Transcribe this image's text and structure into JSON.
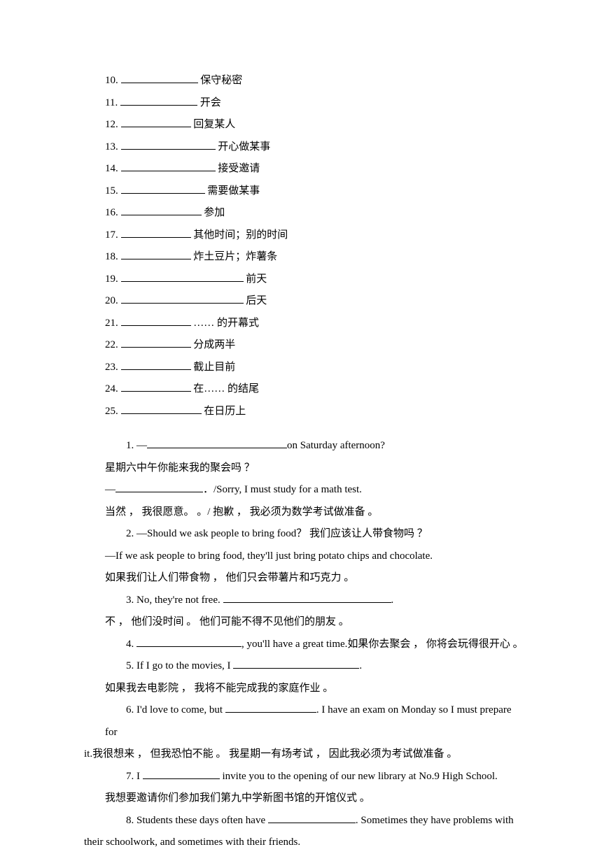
{
  "vocab": [
    {
      "num": "10.",
      "blank_width": 110,
      "label": "保守秘密"
    },
    {
      "num": "11.",
      "blank_width": 110,
      "label": "开会"
    },
    {
      "num": "12.",
      "blank_width": 100,
      "label": "回复某人"
    },
    {
      "num": "13.",
      "blank_width": 135,
      "label": "开心做某事"
    },
    {
      "num": "14.",
      "blank_width": 135,
      "label": "接受邀请"
    },
    {
      "num": "15.",
      "blank_width": 120,
      "label": "需要做某事"
    },
    {
      "num": "16.",
      "blank_width": 115,
      "label": "参加"
    },
    {
      "num": "17.",
      "blank_width": 100,
      "label": "其他时间；别的时间"
    },
    {
      "num": "18.",
      "blank_width": 100,
      "label": "炸土豆片；炸薯条"
    },
    {
      "num": "19.",
      "blank_width": 175,
      "label": "前天"
    },
    {
      "num": "20.",
      "blank_width": 175,
      "label": "后天"
    },
    {
      "num": "21.",
      "blank_width": 100,
      "label": "…… 的开幕式"
    },
    {
      "num": "22.",
      "blank_width": 100,
      "label": "分成两半"
    },
    {
      "num": "23.",
      "blank_width": 100,
      "label": "截止目前"
    },
    {
      "num": "24.",
      "blank_width": 100,
      "label": "在…… 的结尾"
    },
    {
      "num": "25.",
      "blank_width": 115,
      "label": "在日历上"
    }
  ],
  "s1": {
    "num": "1. —",
    "blank1_width": 200,
    "tail1": "on Saturday afternoon?",
    "cn1": "星期六中午你能来我的聚会吗 ？",
    "dash": "—",
    "blank2_width": 125,
    "tail2": "．/Sorry, I must study for a math test.",
    "cn2": "当然 ， 我很愿意。 。/ 抱歉 ， 我必须为数学考试做准备 。"
  },
  "s2": {
    "line1": "2. —Should we ask people to bring food？ 我们应该让人带食物吗 ？",
    "line2": "—If we ask people to bring food, they'll just bring potato chips and chocolate.",
    "line3": "如果我们让人们带食物 ， 他们只会带薯片和巧克力 。"
  },
  "s3": {
    "pre": "3. No, they're not free. ",
    "blank_width": 240,
    "tail": ".",
    "cn": "不 ， 他们没时间 。 他们可能不得不见他们的朋友 。"
  },
  "s4": {
    "num": "4. ",
    "blank_width": 150,
    "tail": ", you'll have a great time.如果你去聚会 ， 你将会玩得很开心 。"
  },
  "s5": {
    "pre": "5. If I go to the movies, I ",
    "blank_width": 180,
    "tail": ".",
    "cn": "如果我去电影院 ， 我将不能完成我的家庭作业 。"
  },
  "s6": {
    "pre": "6. I'd love to come, but ",
    "blank_width": 130,
    "tail": ". I have an exam on Monday so I must prepare for",
    "cn": "it.我很想来 ， 但我恐怕不能 。 我星期一有场考试 ， 因此我必须为考试做准备 。"
  },
  "s7": {
    "pre": "7. I ",
    "blank_width": 110,
    "tail": " invite you to the opening of our new library at No.9 High School.",
    "cn": "我想要邀请你们参加我们第九中学新图书馆的开馆仪式 。"
  },
  "s8": {
    "pre": "8. Students these days often have ",
    "blank_width": 125,
    "tail": ". Sometimes they have problems with",
    "cn": "their schoolwork, and sometimes with their friends."
  }
}
